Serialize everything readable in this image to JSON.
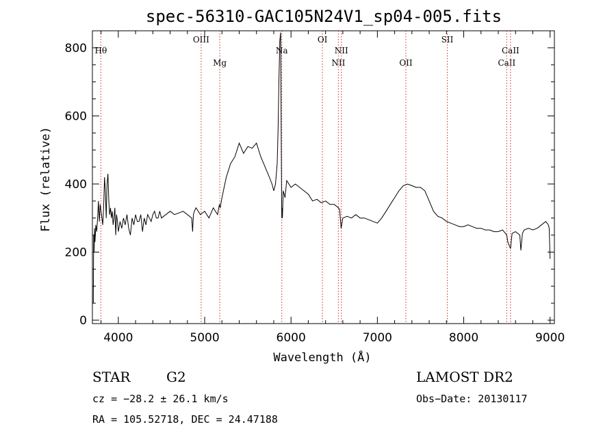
{
  "chart_data": {
    "type": "line",
    "title": "spec-56310-GAC105N24V1_sp04-005.fits",
    "xlabel": "Wavelength (Å)",
    "ylabel": "Flux (relative)",
    "xlim": [
      3700,
      9050
    ],
    "ylim": [
      -10,
      850
    ],
    "x_ticks": [
      4000,
      5000,
      6000,
      7000,
      8000,
      9000
    ],
    "y_ticks": [
      0,
      200,
      400,
      600,
      800
    ],
    "grid": false,
    "series": [
      {
        "color": "#000000",
        "x": [
          3710,
          3715,
          3720,
          3725,
          3730,
          3740,
          3750,
          3760,
          3770,
          3780,
          3790,
          3800,
          3810,
          3820,
          3830,
          3840,
          3850,
          3860,
          3870,
          3880,
          3890,
          3900,
          3910,
          3920,
          3930,
          3940,
          3950,
          3960,
          3970,
          3980,
          3990,
          4000,
          4020,
          4040,
          4060,
          4080,
          4100,
          4120,
          4140,
          4160,
          4180,
          4200,
          4220,
          4240,
          4260,
          4280,
          4300,
          4320,
          4340,
          4360,
          4380,
          4400,
          4420,
          4440,
          4460,
          4480,
          4500,
          4550,
          4600,
          4650,
          4700,
          4750,
          4800,
          4850,
          4860,
          4870,
          4880,
          4900,
          4950,
          5000,
          5050,
          5100,
          5150,
          5170,
          5180,
          5200,
          5250,
          5300,
          5350,
          5400,
          5450,
          5500,
          5550,
          5600,
          5650,
          5700,
          5750,
          5780,
          5800,
          5820,
          5840,
          5850,
          5860,
          5870,
          5880,
          5890,
          5893,
          5897,
          5900,
          5910,
          5930,
          5950,
          6000,
          6050,
          6100,
          6150,
          6200,
          6250,
          6300,
          6350,
          6400,
          6450,
          6500,
          6550,
          6563,
          6580,
          6600,
          6650,
          6700,
          6750,
          6800,
          6850,
          6900,
          6950,
          7000,
          7050,
          7100,
          7150,
          7200,
          7250,
          7300,
          7350,
          7400,
          7450,
          7500,
          7550,
          7600,
          7650,
          7700,
          7750,
          7800,
          7850,
          7900,
          7950,
          8000,
          8050,
          8100,
          8150,
          8200,
          8250,
          8300,
          8350,
          8400,
          8450,
          8498,
          8510,
          8542,
          8560,
          8600,
          8650,
          8662,
          8680,
          8700,
          8750,
          8800,
          8850,
          8900,
          8950,
          8980,
          8990,
          9000
        ],
        "y": [
          50,
          250,
          200,
          270,
          230,
          280,
          260,
          300,
          350,
          290,
          340,
          320,
          300,
          280,
          330,
          420,
          380,
          300,
          400,
          430,
          350,
          310,
          330,
          300,
          320,
          280,
          300,
          330,
          250,
          310,
          290,
          260,
          290,
          270,
          300,
          280,
          310,
          270,
          250,
          300,
          280,
          310,
          290,
          290,
          310,
          260,
          300,
          280,
          310,
          300,
          290,
          310,
          320,
          300,
          300,
          320,
          300,
          310,
          320,
          310,
          315,
          320,
          310,
          300,
          260,
          310,
          320,
          330,
          310,
          320,
          300,
          330,
          310,
          340,
          330,
          360,
          420,
          460,
          480,
          520,
          490,
          510,
          505,
          520,
          480,
          450,
          420,
          400,
          380,
          400,
          460,
          560,
          700,
          820,
          845,
          400,
          300,
          330,
          300,
          380,
          360,
          410,
          390,
          400,
          390,
          380,
          370,
          350,
          355,
          345,
          350,
          340,
          340,
          330,
          325,
          270,
          300,
          305,
          300,
          310,
          300,
          300,
          295,
          290,
          285,
          300,
          320,
          340,
          360,
          380,
          395,
          400,
          395,
          390,
          390,
          380,
          350,
          320,
          305,
          300,
          290,
          285,
          280,
          275,
          275,
          280,
          275,
          270,
          270,
          265,
          265,
          260,
          260,
          265,
          250,
          230,
          210,
          255,
          260,
          250,
          205,
          255,
          265,
          270,
          265,
          270,
          280,
          290,
          280,
          270,
          180
        ]
      }
    ],
    "line_markers": [
      {
        "label": "Hθ",
        "x": 3798,
        "tier": "high"
      },
      {
        "label": "OIII",
        "x": 4959,
        "tier": "top"
      },
      {
        "label": "Mg",
        "x": 5175,
        "tier": "low"
      },
      {
        "label": "Na",
        "x": 5893,
        "tier": "high"
      },
      {
        "label": "OI",
        "x": 6364,
        "tier": "top"
      },
      {
        "label": "NII",
        "x": 6548,
        "tier": "low"
      },
      {
        "label": "NII",
        "x": 6583,
        "tier": "high"
      },
      {
        "label": "OII",
        "x": 7330,
        "tier": "low"
      },
      {
        "label": "SII",
        "x": 7810,
        "tier": "top"
      },
      {
        "label": "CaII",
        "x": 8498,
        "tier": "low"
      },
      {
        "label": "CaII",
        "x": 8542,
        "tier": "high"
      }
    ]
  },
  "info": {
    "object_class": "STAR",
    "subclass": "G2",
    "survey": "LAMOST DR2",
    "redshift": "cz = −28.2 ± 26.1 km/s",
    "obs_date": "Obs−Date: 20130117",
    "coords": "RA = 105.52718, DEC =  24.47188"
  }
}
